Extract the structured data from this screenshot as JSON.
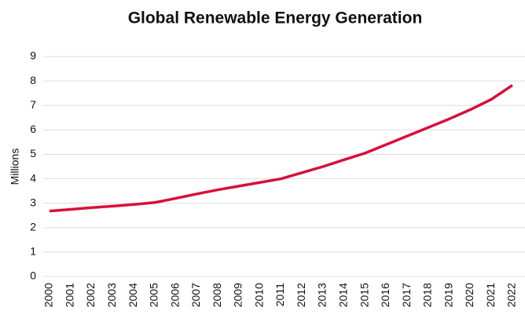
{
  "chart_data": {
    "type": "line",
    "title": "Global Renewable Energy Generation",
    "ylabel": "Millions",
    "x": [
      2000,
      2001,
      2002,
      2003,
      2004,
      2005,
      2006,
      2007,
      2008,
      2009,
      2010,
      2011,
      2012,
      2013,
      2014,
      2015,
      2016,
      2017,
      2018,
      2019,
      2020,
      2021,
      2022
    ],
    "series": [
      {
        "name": "Global Renewable Energy Generation",
        "color": "#d90f3c",
        "values": [
          2.68,
          2.75,
          2.82,
          2.88,
          2.95,
          3.03,
          3.2,
          3.38,
          3.55,
          3.7,
          3.85,
          4.0,
          4.25,
          4.5,
          4.78,
          5.05,
          5.4,
          5.75,
          6.1,
          6.45,
          6.83,
          7.25,
          7.83
        ]
      }
    ],
    "xlim": [
      2000,
      2022
    ],
    "xticks": [
      2000,
      2001,
      2002,
      2003,
      2004,
      2005,
      2006,
      2007,
      2008,
      2009,
      2010,
      2011,
      2012,
      2013,
      2014,
      2015,
      2016,
      2017,
      2018,
      2019,
      2020,
      2021,
      2022
    ],
    "ylim": [
      0,
      9
    ],
    "yticks": [
      0,
      1,
      2,
      3,
      4,
      5,
      6,
      7,
      8,
      9
    ],
    "grid": true
  }
}
